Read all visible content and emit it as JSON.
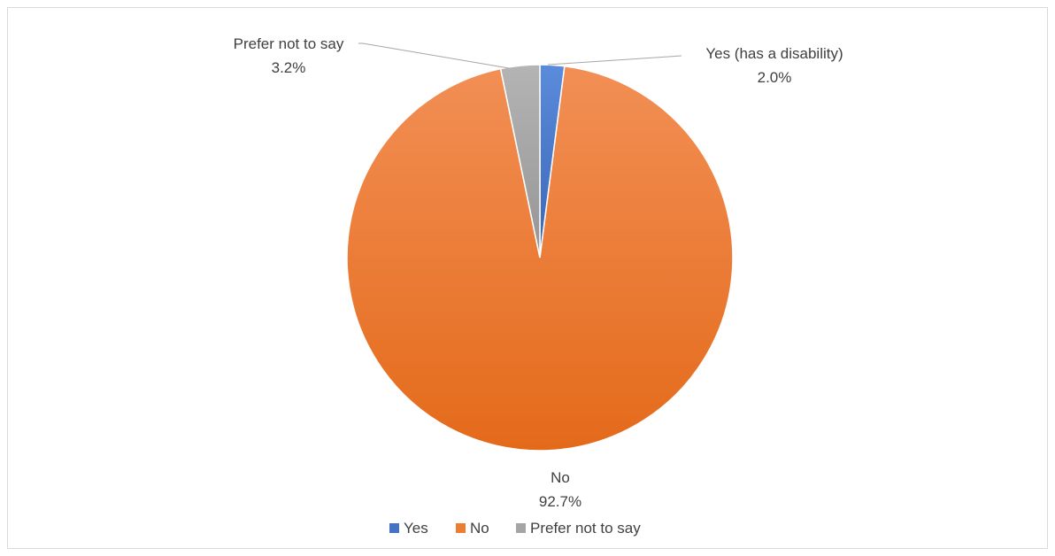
{
  "chart_data": {
    "type": "pie",
    "title": "",
    "slices": [
      {
        "name": "Yes",
        "label": "Yes (has a disability)",
        "value": 2.0,
        "display": "2.0%",
        "color": "#4472c4"
      },
      {
        "name": "No",
        "label": "No",
        "value": 92.7,
        "display": "92.7%",
        "color": "#ed7d31"
      },
      {
        "name": "Prefer not to say",
        "label": "Prefer not to say",
        "value": 3.2,
        "display": "3.2%",
        "color": "#a5a5a5"
      }
    ],
    "legend": {
      "position": "bottom",
      "entries": [
        "Yes",
        "No",
        "Prefer not to say"
      ]
    }
  }
}
